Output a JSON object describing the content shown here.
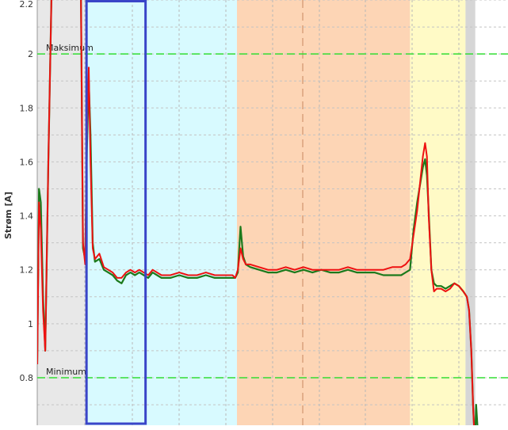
{
  "chart_data": {
    "type": "line",
    "title": "",
    "xlabel": "",
    "ylabel": "Strøm [A]",
    "ylim": [
      0.64,
      2.2
    ],
    "xlim": [
      0,
      100
    ],
    "y_ticks": [
      "0.8",
      "1",
      "1.2",
      "1.4",
      "1.6",
      "1.8",
      "2",
      "2.2"
    ],
    "y_tick_values": [
      0.8,
      1.0,
      1.2,
      1.4,
      1.6,
      1.8,
      2.0,
      2.2
    ],
    "grid": true,
    "limits": [
      {
        "label": "Maksimum",
        "value": 2.0,
        "color": "#33dd33"
      },
      {
        "label": "Minimum",
        "value": 0.8,
        "color": "#33dd33"
      }
    ],
    "phases": [
      {
        "start": 0,
        "end": 11,
        "color": "#e8e8e8"
      },
      {
        "start": 11,
        "end": 45,
        "color": "#d8faff"
      },
      {
        "start": 45,
        "end": 84,
        "color": "#fdd5b5"
      },
      {
        "start": 84,
        "end": 96.5,
        "color": "#fffac6"
      },
      {
        "start": 96.5,
        "end": 98.7,
        "color": "#d6d6d6"
      }
    ],
    "highlight_window": {
      "start": 11.1,
      "end": 24.4,
      "color": "#3a45c8"
    },
    "series": [
      {
        "color": "#1c7a1c",
        "x": [
          0,
          0.4,
          0.8,
          1.3,
          1.8,
          2.5,
          3.3,
          4.2,
          5.0,
          5.8,
          6.6,
          7.3,
          8.0,
          8.7,
          9.3,
          9.8,
          10.3,
          10.8,
          11.2,
          11.6,
          12.0,
          12.5,
          13.0,
          14.0,
          15.0,
          16.0,
          17.0,
          18.0,
          19.0,
          20.0,
          21.0,
          22.0,
          23.0,
          24.0,
          25.0,
          26.0,
          27.0,
          28.0,
          30.0,
          32.0,
          34.0,
          36.0,
          38.0,
          40.0,
          42.0,
          44.0,
          44.6,
          45.2,
          45.8,
          46.4,
          47.0,
          48.0,
          50.0,
          52.0,
          54.0,
          56.0,
          58.0,
          60.0,
          62.0,
          64.0,
          66.0,
          68.0,
          70.0,
          72.0,
          74.0,
          76.0,
          78.0,
          80.0,
          82.0,
          83.0,
          84.0,
          84.8,
          85.6,
          86.3,
          86.9,
          87.4,
          87.8,
          88.2,
          88.8,
          89.4,
          90.0,
          91.0,
          92.0,
          93.0,
          94.0,
          95.0,
          96.0,
          96.8,
          97.3,
          97.8,
          98.2,
          98.6,
          98.9,
          99.2
        ],
        "y": [
          0.85,
          1.5,
          1.45,
          1.1,
          0.9,
          1.6,
          2.3,
          2.3,
          2.3,
          2.3,
          2.3,
          2.3,
          2.3,
          2.3,
          2.3,
          2.3,
          1.28,
          1.24,
          1.65,
          1.9,
          1.7,
          1.3,
          1.23,
          1.24,
          1.2,
          1.19,
          1.18,
          1.16,
          1.15,
          1.18,
          1.19,
          1.18,
          1.19,
          1.18,
          1.17,
          1.19,
          1.18,
          1.17,
          1.17,
          1.18,
          1.17,
          1.17,
          1.18,
          1.17,
          1.17,
          1.17,
          1.17,
          1.19,
          1.36,
          1.25,
          1.22,
          1.21,
          1.2,
          1.19,
          1.19,
          1.2,
          1.19,
          1.2,
          1.19,
          1.2,
          1.19,
          1.19,
          1.2,
          1.19,
          1.19,
          1.19,
          1.18,
          1.18,
          1.18,
          1.19,
          1.2,
          1.35,
          1.45,
          1.52,
          1.58,
          1.61,
          1.55,
          1.42,
          1.2,
          1.15,
          1.14,
          1.14,
          1.13,
          1.14,
          1.15,
          1.14,
          1.12,
          1.1,
          1.05,
          0.9,
          0.7,
          0.55,
          0.7,
          0.62
        ]
      },
      {
        "color": "#ee1111",
        "x": [
          0,
          0.4,
          0.8,
          1.3,
          1.8,
          2.5,
          3.3,
          4.2,
          5.0,
          5.8,
          6.6,
          7.3,
          8.0,
          8.7,
          9.3,
          9.8,
          10.3,
          10.8,
          11.2,
          11.6,
          12.0,
          12.5,
          13.0,
          14.0,
          15.0,
          16.0,
          17.0,
          18.0,
          19.0,
          20.0,
          21.0,
          22.0,
          23.0,
          24.0,
          25.0,
          26.0,
          27.0,
          28.0,
          30.0,
          32.0,
          34.0,
          36.0,
          38.0,
          40.0,
          42.0,
          44.0,
          44.6,
          45.2,
          45.8,
          46.4,
          47.0,
          48.0,
          50.0,
          52.0,
          54.0,
          56.0,
          58.0,
          60.0,
          62.0,
          64.0,
          66.0,
          68.0,
          70.0,
          72.0,
          74.0,
          76.0,
          78.0,
          80.0,
          82.0,
          83.0,
          84.0,
          84.8,
          85.6,
          86.3,
          86.9,
          87.4,
          87.8,
          88.2,
          88.8,
          89.4,
          90.0,
          91.0,
          92.0,
          93.0,
          94.0,
          95.0,
          96.0,
          96.8,
          97.3,
          97.8,
          98.2,
          98.6
        ],
        "y": [
          0.85,
          1.45,
          1.35,
          1.05,
          0.9,
          1.6,
          2.3,
          2.3,
          2.3,
          2.3,
          2.3,
          2.3,
          2.3,
          2.3,
          2.3,
          2.3,
          1.3,
          1.22,
          1.7,
          1.95,
          1.6,
          1.28,
          1.24,
          1.26,
          1.21,
          1.2,
          1.19,
          1.17,
          1.17,
          1.19,
          1.2,
          1.19,
          1.2,
          1.19,
          1.18,
          1.2,
          1.19,
          1.18,
          1.18,
          1.19,
          1.18,
          1.18,
          1.19,
          1.18,
          1.18,
          1.18,
          1.17,
          1.2,
          1.28,
          1.24,
          1.22,
          1.22,
          1.21,
          1.2,
          1.2,
          1.21,
          1.2,
          1.21,
          1.2,
          1.2,
          1.2,
          1.2,
          1.21,
          1.2,
          1.2,
          1.2,
          1.2,
          1.21,
          1.21,
          1.22,
          1.24,
          1.33,
          1.42,
          1.53,
          1.62,
          1.67,
          1.62,
          1.4,
          1.2,
          1.12,
          1.13,
          1.13,
          1.12,
          1.13,
          1.15,
          1.14,
          1.12,
          1.1,
          1.05,
          0.9,
          0.7,
          0.55
        ]
      }
    ]
  }
}
